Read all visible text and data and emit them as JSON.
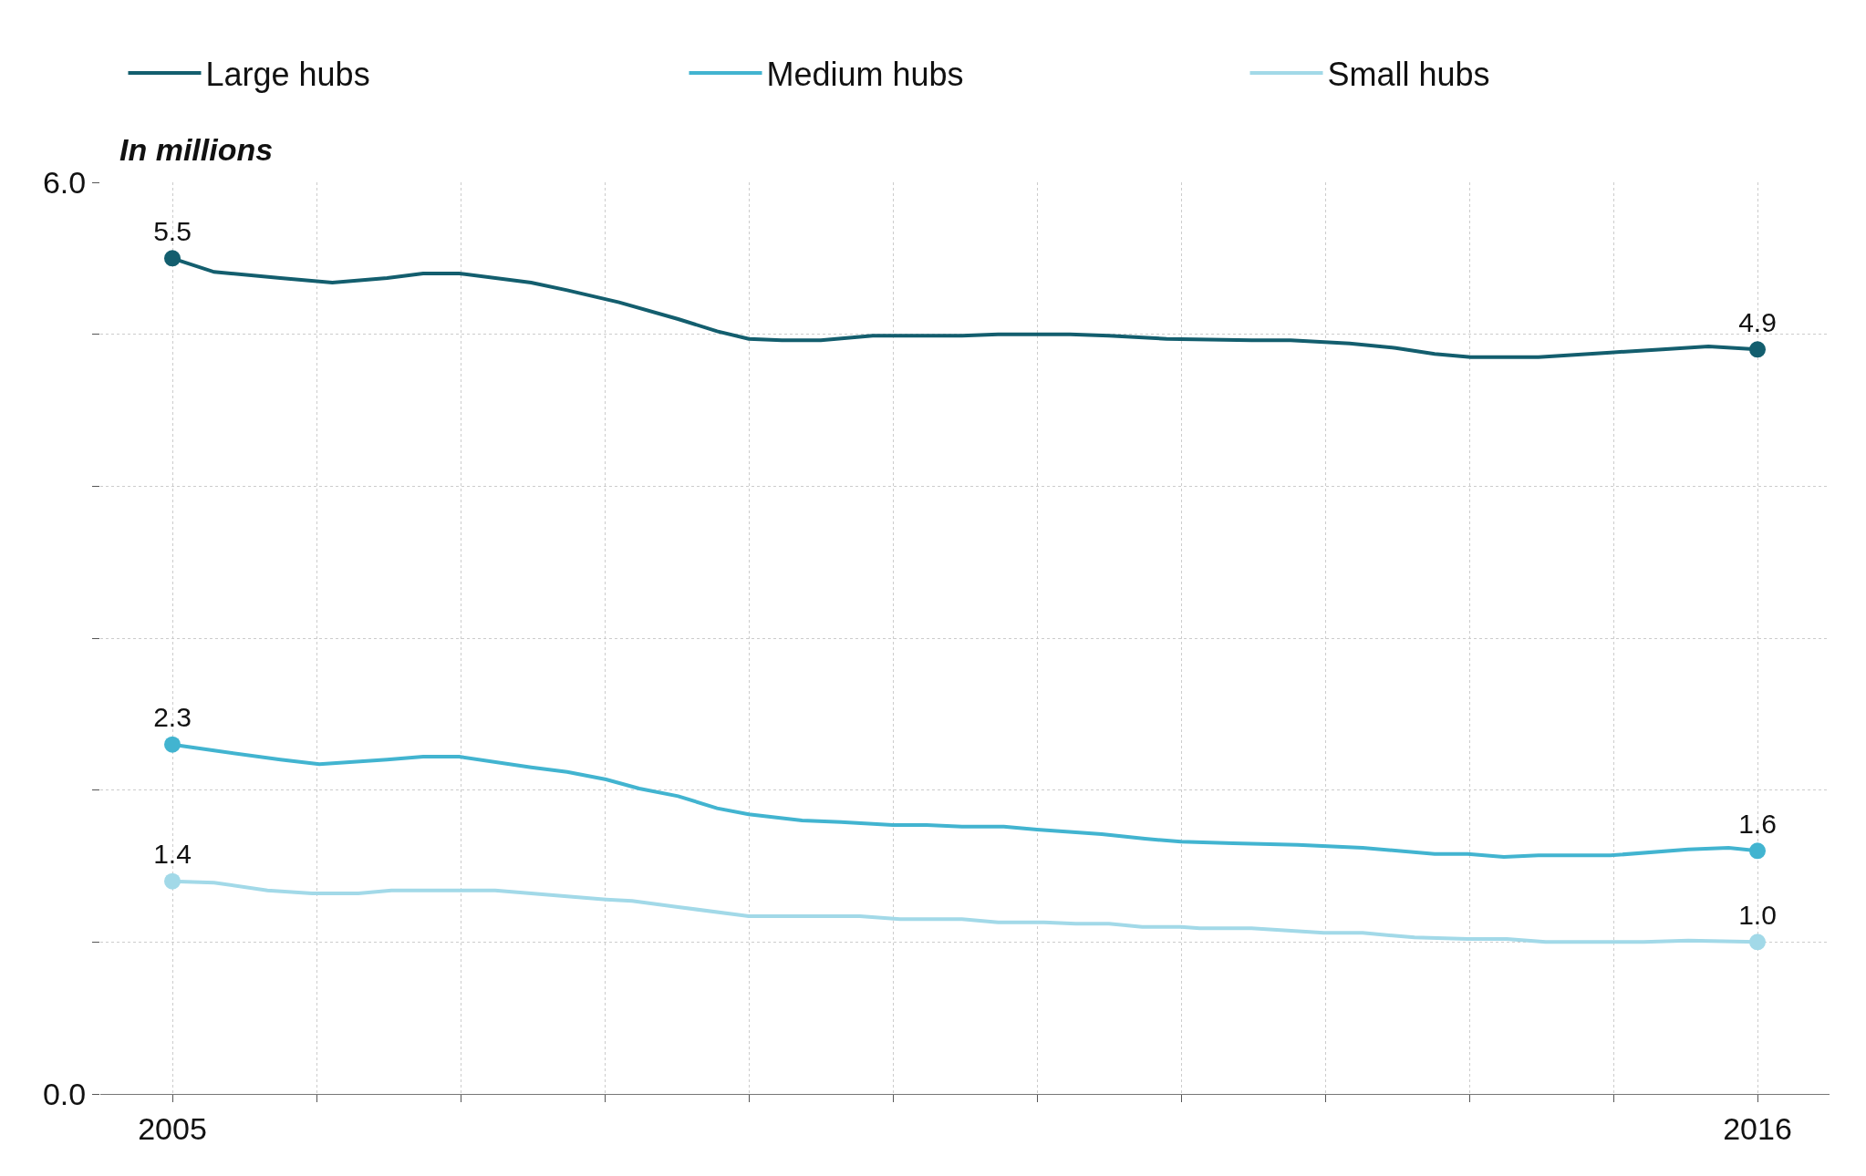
{
  "chart_data": {
    "type": "line",
    "ylabel": "In millions",
    "xlim": [
      2004.5,
      2016.5
    ],
    "ylim": [
      0,
      6
    ],
    "xticks": [
      2005,
      {
        "value": 2006,
        "label": null
      },
      {
        "value": 2007,
        "label": null
      },
      {
        "value": 2008,
        "label": null
      },
      {
        "value": 2009,
        "label": null
      },
      {
        "value": 2010,
        "label": null
      },
      {
        "value": 2011,
        "label": null
      },
      {
        "value": 2012,
        "label": null
      },
      {
        "value": 2013,
        "label": null
      },
      {
        "value": 2014,
        "label": null
      },
      {
        "value": 2015,
        "label": null
      },
      2016
    ],
    "yticks": [
      {
        "value": 0,
        "label": "0.0"
      },
      {
        "value": 1,
        "label": null
      },
      {
        "value": 2,
        "label": null
      },
      {
        "value": 3,
        "label": null
      },
      {
        "value": 4,
        "label": null
      },
      {
        "value": 5,
        "label": null
      },
      {
        "value": 6,
        "label": "6.0"
      }
    ],
    "grid": true,
    "legend": "top",
    "line_style": "solid",
    "series": [
      {
        "name": "Large hubs",
        "color": "#135e6e",
        "x": [
          2005,
          2005.29,
          2005.75,
          2006.11,
          2006.49,
          2006.74,
          2006.99,
          2007.49,
          2007.74,
          2008.1,
          2008.51,
          2008.78,
          2009.0,
          2009.23,
          2009.5,
          2009.86,
          2010.0,
          2010.48,
          2010.73,
          2011.23,
          2011.5,
          2011.9,
          2012.49,
          2012.76,
          2013.17,
          2013.49,
          2013.76,
          2014.01,
          2014.48,
          2014.98,
          2015.34,
          2015.66,
          2016
        ],
        "values": [
          5.5,
          5.41,
          5.37,
          5.34,
          5.37,
          5.4,
          5.4,
          5.34,
          5.29,
          5.21,
          5.1,
          5.02,
          4.97,
          4.96,
          4.96,
          4.99,
          4.99,
          4.99,
          5.0,
          5.0,
          4.99,
          4.97,
          4.96,
          4.96,
          4.94,
          4.91,
          4.87,
          4.85,
          4.85,
          4.88,
          4.9,
          4.92,
          4.9
        ],
        "value_labels": [
          "5.5",
          null,
          null,
          null,
          null,
          null,
          null,
          null,
          null,
          null,
          null,
          null,
          null,
          null,
          null,
          null,
          null,
          null,
          null,
          null,
          null,
          null,
          null,
          null,
          null,
          null,
          null,
          null,
          null,
          null,
          null,
          null,
          "4.9"
        ]
      },
      {
        "name": "Medium hubs",
        "color": "#42b4d0",
        "x": [
          2005,
          2005.29,
          2005.75,
          2006.02,
          2006.49,
          2006.74,
          2006.99,
          2007.49,
          2007.74,
          2008.01,
          2008.24,
          2008.51,
          2008.78,
          2009.0,
          2009.37,
          2009.64,
          2010.0,
          2010.23,
          2010.48,
          2010.77,
          2011.0,
          2011.45,
          2011.75,
          2012.0,
          2012.36,
          2012.81,
          2013.26,
          2013.76,
          2013.99,
          2014.24,
          2014.48,
          2014.98,
          2015.52,
          2015.8,
          2016
        ],
        "values": [
          2.3,
          2.26,
          2.2,
          2.17,
          2.2,
          2.22,
          2.22,
          2.15,
          2.12,
          2.07,
          2.01,
          1.96,
          1.88,
          1.84,
          1.8,
          1.79,
          1.77,
          1.77,
          1.76,
          1.76,
          1.74,
          1.71,
          1.68,
          1.66,
          1.65,
          1.64,
          1.62,
          1.58,
          1.58,
          1.56,
          1.57,
          1.57,
          1.61,
          1.62,
          1.6
        ],
        "value_labels": [
          "2.3",
          null,
          null,
          null,
          null,
          null,
          null,
          null,
          null,
          null,
          null,
          null,
          null,
          null,
          null,
          null,
          null,
          null,
          null,
          null,
          null,
          null,
          null,
          null,
          null,
          null,
          null,
          null,
          null,
          null,
          null,
          null,
          null,
          null,
          "1.6"
        ]
      },
      {
        "name": "Small hubs",
        "color": "#a2d9e8",
        "x": [
          2005,
          2005.29,
          2005.66,
          2005.97,
          2006.29,
          2006.52,
          2007.24,
          2007.74,
          2008.01,
          2008.19,
          2008.51,
          2009.0,
          2009.77,
          2010.05,
          2010.48,
          2010.73,
          2011.05,
          2011.27,
          2011.5,
          2011.73,
          2012.0,
          2012.13,
          2012.49,
          2012.99,
          2013.26,
          2013.62,
          2013.99,
          2014.26,
          2014.53,
          2015.21,
          2015.52,
          2016
        ],
        "values": [
          1.4,
          1.39,
          1.34,
          1.32,
          1.32,
          1.34,
          1.34,
          1.3,
          1.28,
          1.27,
          1.23,
          1.17,
          1.17,
          1.15,
          1.15,
          1.13,
          1.13,
          1.12,
          1.12,
          1.1,
          1.1,
          1.09,
          1.09,
          1.06,
          1.06,
          1.03,
          1.02,
          1.02,
          1.0,
          1.0,
          1.01,
          1.0
        ],
        "value_labels": [
          "1.4",
          null,
          null,
          null,
          null,
          null,
          null,
          null,
          null,
          null,
          null,
          null,
          null,
          null,
          null,
          null,
          null,
          null,
          null,
          null,
          null,
          null,
          null,
          null,
          null,
          null,
          null,
          null,
          null,
          null,
          null,
          "1.0"
        ]
      }
    ]
  }
}
